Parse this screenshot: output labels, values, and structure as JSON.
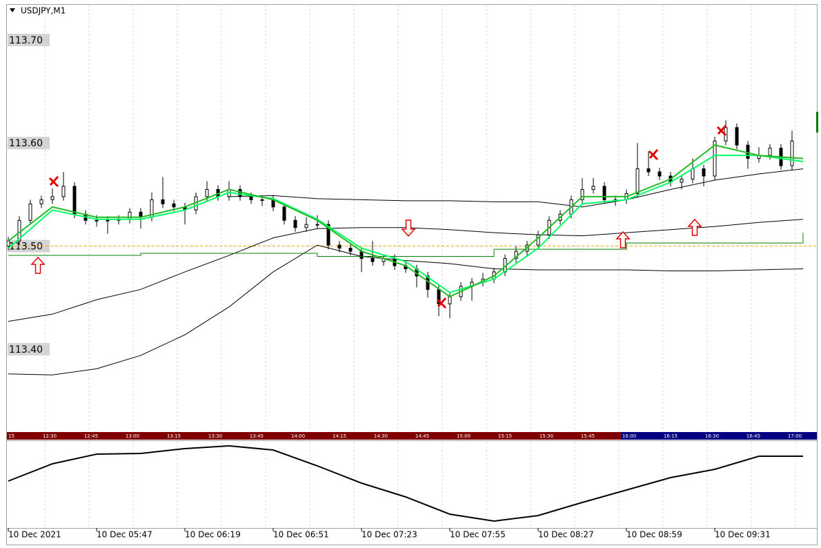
{
  "chart_data": {
    "type": "candlestick",
    "title": "USDJPY,M1",
    "ylim": [
      113.3203,
      113.7334
    ],
    "yticks": [
      {
        "value": 113.7,
        "label": "113.70"
      },
      {
        "value": 113.6,
        "label": "113.60"
      },
      {
        "value": 113.5,
        "label": "113.50"
      },
      {
        "value": 113.4,
        "label": "113.40"
      }
    ],
    "xtick_labels": [
      "10 Dec 2021",
      "10 Dec 05:47",
      "10 Dec 06:19",
      "10 Dec 06:51",
      "10 Dec 07:23",
      "10 Dec 07:55",
      "10 Dec 08:27",
      "10 Dec 08:59",
      "10 Dec 09:31"
    ],
    "session_labels": [
      "15",
      "12:30",
      "12:45",
      "13:00",
      "13:15",
      "13:30",
      "13:45",
      "14:00",
      "14:15",
      "14:30",
      "14:45",
      "15:00",
      "15:15",
      "15:30",
      "15:45",
      "16:00",
      "16:15",
      "16:30",
      "16:45",
      "17:00"
    ],
    "candles": [
      [
        113.5,
        113.509,
        113.496,
        113.505
      ],
      [
        113.505,
        113.529,
        113.501,
        113.525
      ],
      [
        113.525,
        113.545,
        113.521,
        113.541
      ],
      [
        113.541,
        113.549,
        113.537,
        113.545
      ],
      [
        113.545,
        113.556,
        113.541,
        113.548
      ],
      [
        113.548,
        113.572,
        113.544,
        113.558
      ],
      [
        113.558,
        113.562,
        113.527,
        113.531
      ],
      [
        113.531,
        113.535,
        113.521,
        113.525
      ],
      [
        113.525,
        113.53,
        113.519,
        113.525
      ],
      [
        113.525,
        113.529,
        113.512,
        113.525
      ],
      [
        113.525,
        113.53,
        113.521,
        113.526
      ],
      [
        113.526,
        113.537,
        113.522,
        113.533
      ],
      [
        113.533,
        113.537,
        113.517,
        113.528
      ],
      [
        113.528,
        113.552,
        113.524,
        113.545
      ],
      [
        113.545,
        113.567,
        113.537,
        113.541
      ],
      [
        113.541,
        113.545,
        113.534,
        113.538
      ],
      [
        113.538,
        113.542,
        113.521,
        113.535
      ],
      [
        113.535,
        113.552,
        113.531,
        113.548
      ],
      [
        113.548,
        113.563,
        113.544,
        113.555
      ],
      [
        113.555,
        113.559,
        113.544,
        113.548
      ],
      [
        113.548,
        113.563,
        113.544,
        113.555
      ],
      [
        113.555,
        113.559,
        113.544,
        113.548
      ],
      [
        113.548,
        113.552,
        113.541,
        113.545
      ],
      [
        113.545,
        113.549,
        113.539,
        113.545
      ],
      [
        113.545,
        113.549,
        113.534,
        113.538
      ],
      [
        113.538,
        113.542,
        113.521,
        113.525
      ],
      [
        113.525,
        113.529,
        113.514,
        113.518
      ],
      [
        113.518,
        113.528,
        113.514,
        113.521
      ],
      [
        113.521,
        113.53,
        113.517,
        113.521
      ],
      [
        113.521,
        113.525,
        113.497,
        113.501
      ],
      [
        113.501,
        113.505,
        113.494,
        113.498
      ],
      [
        113.498,
        113.502,
        113.491,
        113.495
      ],
      [
        113.495,
        113.499,
        113.475,
        113.488
      ],
      [
        113.488,
        113.505,
        113.481,
        113.485
      ],
      [
        113.485,
        113.492,
        113.481,
        113.488
      ],
      [
        113.488,
        113.492,
        113.477,
        113.481
      ],
      [
        113.481,
        113.485,
        113.474,
        113.478
      ],
      [
        113.478,
        113.482,
        113.46,
        113.471
      ],
      [
        113.471,
        113.475,
        113.45,
        113.458
      ],
      [
        113.458,
        113.462,
        113.432,
        113.444
      ],
      [
        113.444,
        113.455,
        113.43,
        113.451
      ],
      [
        113.451,
        113.465,
        113.447,
        113.461
      ],
      [
        113.461,
        113.469,
        113.447,
        113.465
      ],
      [
        113.465,
        113.474,
        113.461,
        113.468
      ],
      [
        113.468,
        113.479,
        113.464,
        113.475
      ],
      [
        113.475,
        113.492,
        113.471,
        113.488
      ],
      [
        113.488,
        113.5,
        113.484,
        113.495
      ],
      [
        113.495,
        113.505,
        113.491,
        113.501
      ],
      [
        113.501,
        113.515,
        113.497,
        113.511
      ],
      [
        113.511,
        113.529,
        113.507,
        113.525
      ],
      [
        113.525,
        113.535,
        113.521,
        113.531
      ],
      [
        113.531,
        113.549,
        113.527,
        113.545
      ],
      [
        113.545,
        113.566,
        113.541,
        113.555
      ],
      [
        113.555,
        113.566,
        113.551,
        113.558
      ],
      [
        113.558,
        113.562,
        113.541,
        113.545
      ],
      [
        113.545,
        113.549,
        113.539,
        113.545
      ],
      [
        113.545,
        113.555,
        113.541,
        113.551
      ],
      [
        113.551,
        113.6,
        113.547,
        113.575
      ],
      [
        113.575,
        113.592,
        113.568,
        113.572
      ],
      [
        113.572,
        113.576,
        113.564,
        113.568
      ],
      [
        113.568,
        113.572,
        113.558,
        113.562
      ],
      [
        113.562,
        113.569,
        113.555,
        113.565
      ],
      [
        113.565,
        113.585,
        113.561,
        113.575
      ],
      [
        113.575,
        113.579,
        113.558,
        113.568
      ],
      [
        113.568,
        113.606,
        113.564,
        113.602
      ],
      [
        113.602,
        113.622,
        113.598,
        113.615
      ],
      [
        113.615,
        113.619,
        113.594,
        113.598
      ],
      [
        113.598,
        113.602,
        113.575,
        113.585
      ],
      [
        113.585,
        113.596,
        113.581,
        113.588
      ],
      [
        113.588,
        113.599,
        113.584,
        113.595
      ],
      [
        113.595,
        113.599,
        113.574,
        113.578
      ],
      [
        113.578,
        113.612,
        113.574,
        113.602
      ]
    ],
    "lines": [
      {
        "color": "#000000",
        "values": [
          113.427,
          113.434,
          113.448,
          113.458,
          113.475,
          113.491,
          113.508,
          113.517,
          113.518,
          113.518,
          113.516,
          113.513,
          113.511,
          113.51,
          113.513,
          113.516,
          113.519,
          113.523,
          113.526
        ]
      },
      {
        "color": "#000000",
        "values": [
          113.376,
          113.375,
          113.381,
          113.394,
          113.414,
          113.441,
          113.475,
          113.501,
          113.49,
          113.486,
          113.483,
          113.478,
          113.477,
          113.477,
          113.477,
          113.476,
          113.476,
          113.477,
          113.478
        ]
      },
      {
        "color": "#000000",
        "values": [
          null,
          null,
          null,
          null,
          null,
          113.548,
          113.549,
          113.546,
          113.545,
          113.544,
          113.544,
          113.543,
          113.543,
          113.538,
          113.545,
          113.555,
          113.564,
          113.57,
          113.575
        ]
      },
      {
        "color": "#008000",
        "step": true,
        "values": [
          113.491,
          113.491,
          113.491,
          113.493,
          113.493,
          113.493,
          113.493,
          113.49,
          113.49,
          113.49,
          113.49,
          113.497,
          113.497,
          113.497,
          113.503,
          113.503,
          113.503,
          113.503,
          113.513
        ]
      },
      {
        "color": "#00ff66",
        "values": [
          113.498,
          113.535,
          113.526,
          113.526,
          113.535,
          113.552,
          113.546,
          113.526,
          113.498,
          113.485,
          113.455,
          113.468,
          113.498,
          113.541,
          113.545,
          113.562,
          113.588,
          113.588,
          113.582
        ]
      },
      {
        "color": "#22bb22",
        "values": [
          113.505,
          113.538,
          113.528,
          113.528,
          113.538,
          113.555,
          113.545,
          113.525,
          113.495,
          113.481,
          113.451,
          113.471,
          113.508,
          113.548,
          113.548,
          113.565,
          113.598,
          113.588,
          113.585
        ]
      }
    ],
    "level": {
      "value": 113.5,
      "color": "#ffa500"
    },
    "oscillator": {
      "color": "#000000",
      "ylim": [
        0,
        100
      ],
      "values": [
        54.4,
        74.4,
        85.6,
        86.4,
        92,
        95.2,
        90.4,
        72,
        52,
        36,
        16,
        8,
        14.4,
        29.6,
        44,
        58.4,
        68,
        83.2,
        83.2
      ]
    }
  }
}
